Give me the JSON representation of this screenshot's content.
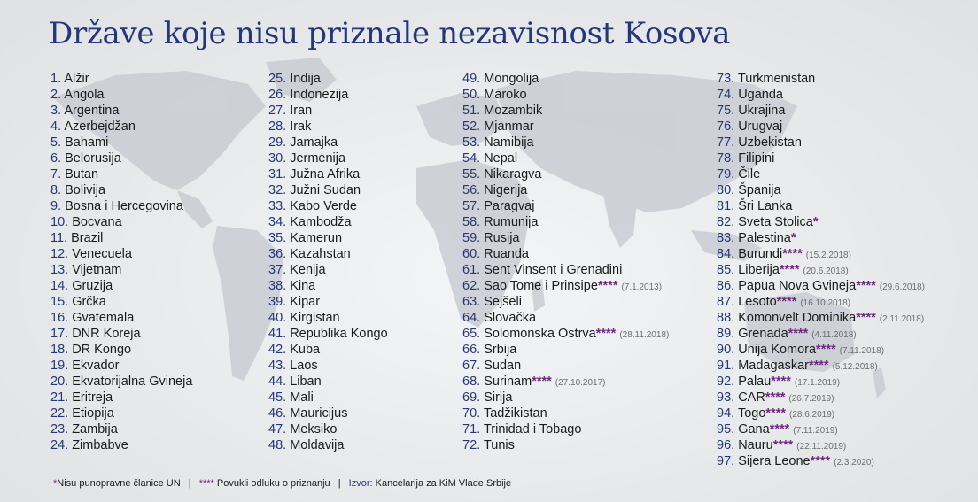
{
  "title": "Države koje nisu priznale nezavisnost Kosova",
  "colors": {
    "title": "#24377a",
    "number": "#24377a",
    "star": "#6b2c7e",
    "date": "#6e6e6e"
  },
  "columns": [
    [
      {
        "num": "1.",
        "name": "Alžir"
      },
      {
        "num": "2.",
        "name": "Angola"
      },
      {
        "num": "3.",
        "name": "Argentina"
      },
      {
        "num": "4.",
        "name": "Azerbejdžan"
      },
      {
        "num": "5.",
        "name": "Bahami"
      },
      {
        "num": "6.",
        "name": "Belorusija"
      },
      {
        "num": "7.",
        "name": "Butan"
      },
      {
        "num": "8.",
        "name": "Bolivija"
      },
      {
        "num": "9.",
        "name": "Bosna i Hercegovina"
      },
      {
        "num": "10.",
        "name": "Bocvana"
      },
      {
        "num": "11.",
        "name": "Brazil"
      },
      {
        "num": "12.",
        "name": "Venecuela"
      },
      {
        "num": "13.",
        "name": "Vijetnam"
      },
      {
        "num": "14.",
        "name": "Gruzija"
      },
      {
        "num": "15.",
        "name": "Grčka"
      },
      {
        "num": "16.",
        "name": "Gvatemala"
      },
      {
        "num": "17.",
        "name": "DNR Koreja"
      },
      {
        "num": "18.",
        "name": "DR Kongo"
      },
      {
        "num": "19.",
        "name": "Ekvador"
      },
      {
        "num": "20.",
        "name": "Ekvatorijalna Gvineja"
      },
      {
        "num": "21.",
        "name": "Eritreja"
      },
      {
        "num": "22.",
        "name": "Etiopija"
      },
      {
        "num": "23.",
        "name": "Zambija"
      },
      {
        "num": "24.",
        "name": "Zimbabve"
      }
    ],
    [
      {
        "num": "25.",
        "name": "Indija"
      },
      {
        "num": "26.",
        "name": "Indonezija"
      },
      {
        "num": "27.",
        "name": "Iran"
      },
      {
        "num": "28.",
        "name": "Irak"
      },
      {
        "num": "29.",
        "name": "Jamajka"
      },
      {
        "num": "30.",
        "name": "Jermenija"
      },
      {
        "num": "31.",
        "name": "Južna Afrika"
      },
      {
        "num": "32.",
        "name": "Južni Sudan"
      },
      {
        "num": "33.",
        "name": "Kabo Verde"
      },
      {
        "num": "34.",
        "name": "Kambodža"
      },
      {
        "num": "35.",
        "name": "Kamerun"
      },
      {
        "num": "36.",
        "name": "Kazahstan"
      },
      {
        "num": "37.",
        "name": "Kenija"
      },
      {
        "num": "38.",
        "name": "Kina"
      },
      {
        "num": "39.",
        "name": "Kipar"
      },
      {
        "num": "40.",
        "name": "Kirgistan"
      },
      {
        "num": "41.",
        "name": "Republika Kongo"
      },
      {
        "num": "42.",
        "name": "Kuba"
      },
      {
        "num": "43.",
        "name": "Laos"
      },
      {
        "num": "44.",
        "name": "Liban"
      },
      {
        "num": "45.",
        "name": "Mali"
      },
      {
        "num": "46.",
        "name": "Mauricijus"
      },
      {
        "num": "47.",
        "name": "Meksiko"
      },
      {
        "num": "48.",
        "name": "Moldavija"
      }
    ],
    [
      {
        "num": "49.",
        "name": "Mongolija"
      },
      {
        "num": "50.",
        "name": "Maroko"
      },
      {
        "num": "51.",
        "name": "Mozambik"
      },
      {
        "num": "52.",
        "name": "Mjanmar"
      },
      {
        "num": "53.",
        "name": "Namibija"
      },
      {
        "num": "54.",
        "name": "Nepal"
      },
      {
        "num": "55.",
        "name": "Nikaragva"
      },
      {
        "num": "56.",
        "name": "Nigerija"
      },
      {
        "num": "57.",
        "name": "Paragvaj"
      },
      {
        "num": "58.",
        "name": "Rumunija"
      },
      {
        "num": "59.",
        "name": "Rusija"
      },
      {
        "num": "60.",
        "name": "Ruanda"
      },
      {
        "num": "61.",
        "name": "Sent Vinsent i Grenadini"
      },
      {
        "num": "62.",
        "name": "Sao Tome i Prinsipe",
        "star": "****",
        "date": "(7.1.2013)"
      },
      {
        "num": "63.",
        "name": "Sejšeli"
      },
      {
        "num": "64.",
        "name": "Slovačka"
      },
      {
        "num": "65.",
        "name": "Solomonska Ostrva",
        "star": "****",
        "date": "(28.11.2018)"
      },
      {
        "num": "66.",
        "name": "Srbija"
      },
      {
        "num": "67.",
        "name": "Sudan"
      },
      {
        "num": "68.",
        "name": "Surinam",
        "star": "****",
        "date": "(27.10.2017)"
      },
      {
        "num": "69.",
        "name": "Sirija"
      },
      {
        "num": "70.",
        "name": "Tadžikistan"
      },
      {
        "num": "71.",
        "name": "Trinidad i Tobago"
      },
      {
        "num": "72.",
        "name": "Tunis"
      }
    ],
    [
      {
        "num": "73.",
        "name": "Turkmenistan"
      },
      {
        "num": "74.",
        "name": "Uganda"
      },
      {
        "num": "75.",
        "name": "Ukrajina"
      },
      {
        "num": "76.",
        "name": "Urugvaj"
      },
      {
        "num": "77.",
        "name": "Uzbekistan"
      },
      {
        "num": "78.",
        "name": "Filipini"
      },
      {
        "num": "79.",
        "name": "Čile"
      },
      {
        "num": "80.",
        "name": "Španija"
      },
      {
        "num": "81.",
        "name": "Šri Lanka"
      },
      {
        "num": "82.",
        "name": "Sveta Stolica",
        "star": "*"
      },
      {
        "num": "83.",
        "name": "Palestina",
        "star": "*"
      },
      {
        "num": "84.",
        "name": "Burundi",
        "star": "****",
        "date": "(15.2.2018)"
      },
      {
        "num": "85.",
        "name": "Liberija",
        "star": "****",
        "date": "(20.6.2018)"
      },
      {
        "num": "86.",
        "name": "Papua Nova Gvineja",
        "star": "****",
        "date": "(29.6.2018)"
      },
      {
        "num": "87.",
        "name": "Lesoto",
        "star": "****",
        "date": "(16.10.2018)"
      },
      {
        "num": "88.",
        "name": "Komonvelt Dominika",
        "star": "****",
        "date": "(2.11.2018)"
      },
      {
        "num": "89.",
        "name": "Grenada",
        "star": "****",
        "date": "(4.11.2018)"
      },
      {
        "num": "90.",
        "name": "Unija Komora",
        "star": "****",
        "date": "(7.11.2018)"
      },
      {
        "num": "91.",
        "name": "Madagaskar",
        "star": "****",
        "date": "(5.12.2018)"
      },
      {
        "num": "92.",
        "name": "Palau",
        "star": "****",
        "date": "(17.1.2019)"
      },
      {
        "num": "93.",
        "name": "CAR",
        "star": "****",
        "date": "(26.7.2019)"
      },
      {
        "num": "94.",
        "name": "Togo",
        "star": "****",
        "date": "(28.6.2019)"
      },
      {
        "num": "95.",
        "name": "Gana",
        "star": "****",
        "date": "(7.11.2019)"
      },
      {
        "num": "96.",
        "name": "Nauru",
        "star": "****",
        "date": "(22.11.2019)"
      },
      {
        "num": "97.",
        "name": "Sijera Leone",
        "star": "****",
        "date": "(2.3.2020)"
      }
    ]
  ],
  "footer": {
    "star1": "*",
    "note1": "Nisu punopravne članice UN",
    "sep": "|",
    "star4": "****",
    "note2": "Povukli odluku o priznanju",
    "source_label": "Izvor:",
    "source": "Kancelarija za KiM Vlade Srbije"
  }
}
